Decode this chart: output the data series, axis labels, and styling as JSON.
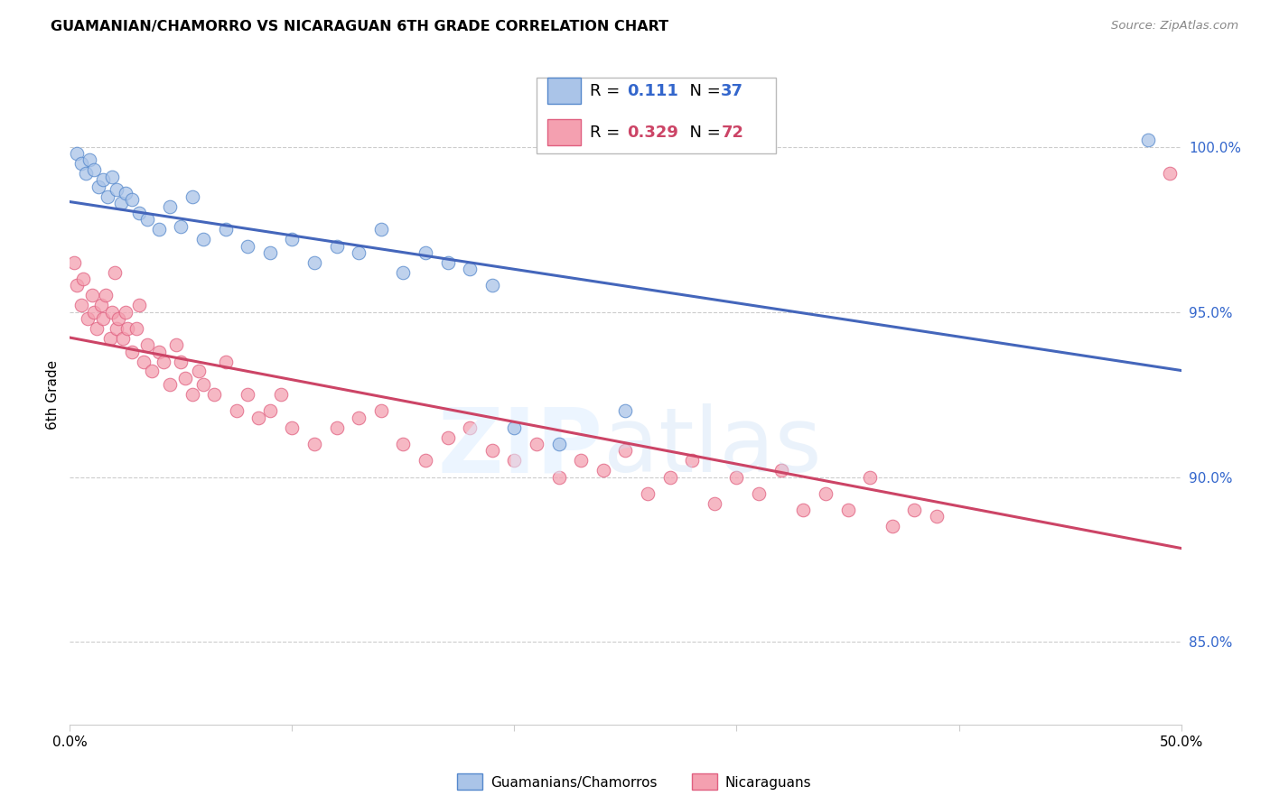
{
  "title": "GUAMANIAN/CHAMORRO VS NICARAGUAN 6TH GRADE CORRELATION CHART",
  "source": "Source: ZipAtlas.com",
  "ylabel": "6th Grade",
  "y_ticks": [
    85.0,
    90.0,
    95.0,
    100.0
  ],
  "y_tick_labels": [
    "85.0%",
    "90.0%",
    "95.0%",
    "100.0%"
  ],
  "xlim": [
    0.0,
    50.0
  ],
  "ylim": [
    82.5,
    102.5
  ],
  "blue_R": "0.111",
  "blue_N": "37",
  "pink_R": "0.329",
  "pink_N": "72",
  "blue_color": "#aac4e8",
  "pink_color": "#f4a0b0",
  "blue_edge_color": "#5588cc",
  "pink_edge_color": "#e06080",
  "blue_line_color": "#4466bb",
  "pink_line_color": "#cc4466",
  "legend_label_blue": "Guamanians/Chamorros",
  "legend_label_pink": "Nicaraguans",
  "blue_points_x": [
    0.3,
    0.5,
    0.7,
    0.9,
    1.1,
    1.3,
    1.5,
    1.7,
    1.9,
    2.1,
    2.3,
    2.5,
    2.8,
    3.1,
    3.5,
    4.0,
    4.5,
    5.0,
    5.5,
    6.0,
    7.0,
    8.0,
    9.0,
    10.0,
    11.0,
    12.0,
    13.0,
    14.0,
    15.0,
    16.0,
    17.0,
    18.0,
    19.0,
    20.0,
    22.0,
    25.0,
    48.5
  ],
  "blue_points_y": [
    99.8,
    99.5,
    99.2,
    99.6,
    99.3,
    98.8,
    99.0,
    98.5,
    99.1,
    98.7,
    98.3,
    98.6,
    98.4,
    98.0,
    97.8,
    97.5,
    98.2,
    97.6,
    98.5,
    97.2,
    97.5,
    97.0,
    96.8,
    97.2,
    96.5,
    97.0,
    96.8,
    97.5,
    96.2,
    96.8,
    96.5,
    96.3,
    95.8,
    91.5,
    91.0,
    92.0,
    100.2
  ],
  "pink_points_x": [
    0.2,
    0.3,
    0.5,
    0.6,
    0.8,
    1.0,
    1.1,
    1.2,
    1.4,
    1.5,
    1.6,
    1.8,
    1.9,
    2.0,
    2.1,
    2.2,
    2.4,
    2.5,
    2.6,
    2.8,
    3.0,
    3.1,
    3.3,
    3.5,
    3.7,
    4.0,
    4.2,
    4.5,
    4.8,
    5.0,
    5.2,
    5.5,
    5.8,
    6.0,
    6.5,
    7.0,
    7.5,
    8.0,
    8.5,
    9.0,
    9.5,
    10.0,
    11.0,
    12.0,
    13.0,
    14.0,
    15.0,
    16.0,
    17.0,
    18.0,
    19.0,
    20.0,
    21.0,
    22.0,
    23.0,
    24.0,
    25.0,
    26.0,
    27.0,
    28.0,
    29.0,
    30.0,
    31.0,
    32.0,
    33.0,
    34.0,
    35.0,
    36.0,
    37.0,
    38.0,
    39.0,
    49.5
  ],
  "pink_points_y": [
    96.5,
    95.8,
    95.2,
    96.0,
    94.8,
    95.5,
    95.0,
    94.5,
    95.2,
    94.8,
    95.5,
    94.2,
    95.0,
    96.2,
    94.5,
    94.8,
    94.2,
    95.0,
    94.5,
    93.8,
    94.5,
    95.2,
    93.5,
    94.0,
    93.2,
    93.8,
    93.5,
    92.8,
    94.0,
    93.5,
    93.0,
    92.5,
    93.2,
    92.8,
    92.5,
    93.5,
    92.0,
    92.5,
    91.8,
    92.0,
    92.5,
    91.5,
    91.0,
    91.5,
    91.8,
    92.0,
    91.0,
    90.5,
    91.2,
    91.5,
    90.8,
    90.5,
    91.0,
    90.0,
    90.5,
    90.2,
    90.8,
    89.5,
    90.0,
    90.5,
    89.2,
    90.0,
    89.5,
    90.2,
    89.0,
    89.5,
    89.0,
    90.0,
    88.5,
    89.0,
    88.8,
    99.2
  ]
}
